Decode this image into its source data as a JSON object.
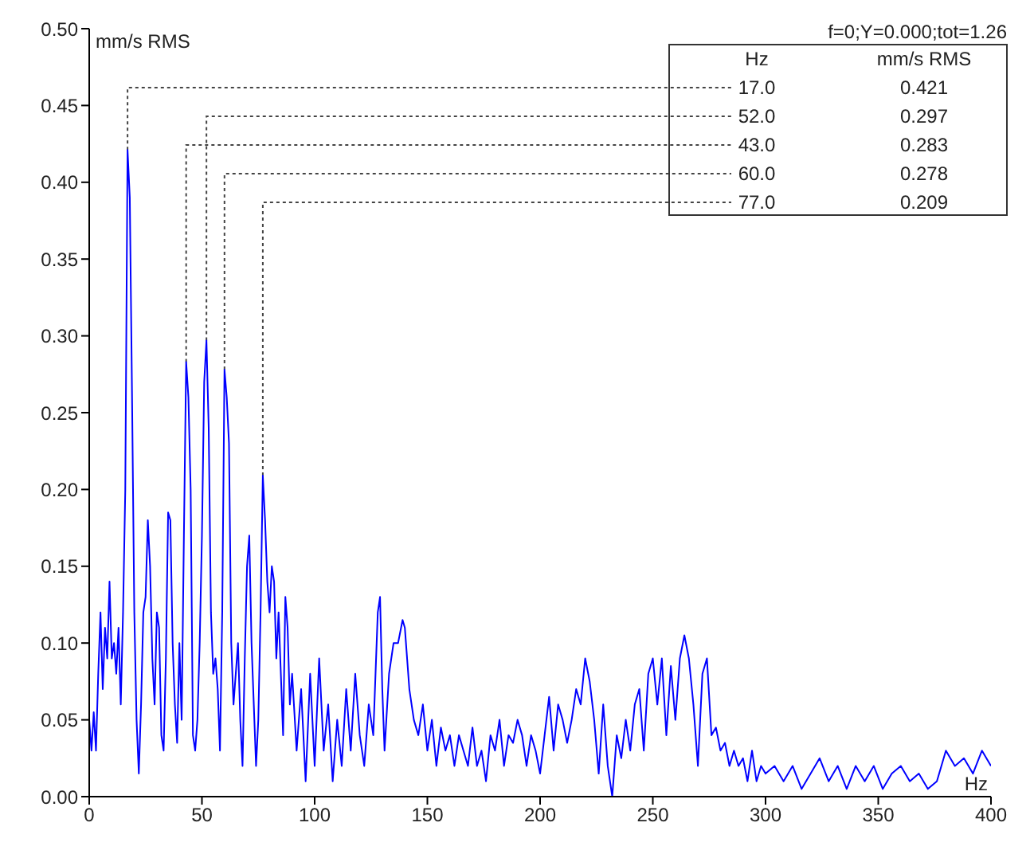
{
  "chart_data": {
    "type": "line",
    "xlabel": "Hz",
    "ylabel": "mm/s RMS",
    "annotations": [
      "f=0;Y=0.000;tot=1.26",
      "Hz",
      "mm/s RMS",
      {
        "text": "17.0",
        "x": 17,
        "y": 0.421
      },
      "0.421",
      {
        "text": "52.0",
        "x": 52,
        "y": 0.297
      },
      "0.297",
      {
        "text": "43.0",
        "x": 43,
        "y": 0.283
      },
      "0.283",
      {
        "text": "60.0",
        "x": 60,
        "y": 0.278
      },
      "0.278",
      {
        "text": "77.0",
        "x": 77,
        "y": 0.209
      },
      "0.209"
    ],
    "x": [
      0,
      1,
      2,
      3,
      4,
      5,
      6,
      7,
      8,
      9,
      10,
      11,
      12,
      13,
      14,
      15,
      16,
      17,
      18,
      19,
      20,
      21,
      22,
      23,
      24,
      25,
      26,
      27,
      28,
      29,
      30,
      31,
      32,
      33,
      34,
      35,
      36,
      37,
      38,
      39,
      40,
      41,
      42,
      43,
      44,
      45,
      46,
      47,
      48,
      49,
      50,
      51,
      52,
      53,
      54,
      55,
      56,
      57,
      58,
      59,
      60,
      61,
      62,
      63,
      64,
      65,
      66,
      67,
      68,
      69,
      70,
      71,
      72,
      73,
      74,
      75,
      76,
      77,
      78,
      79,
      80,
      81,
      82,
      83,
      84,
      85,
      86,
      87,
      88,
      89,
      90,
      92,
      94,
      95,
      96,
      98,
      100,
      102,
      104,
      106,
      108,
      110,
      112,
      114,
      116,
      118,
      120,
      122,
      124,
      126,
      128,
      129,
      130,
      131,
      133,
      135,
      137,
      139,
      140,
      142,
      144,
      146,
      148,
      150,
      152,
      154,
      156,
      158,
      160,
      162,
      164,
      166,
      168,
      170,
      172,
      174,
      176,
      178,
      180,
      182,
      184,
      186,
      188,
      190,
      192,
      194,
      196,
      198,
      200,
      202,
      204,
      206,
      208,
      210,
      212,
      214,
      216,
      218,
      220,
      222,
      224,
      226,
      228,
      230,
      232,
      234,
      236,
      238,
      240,
      242,
      244,
      246,
      248,
      250,
      252,
      254,
      256,
      258,
      260,
      262,
      264,
      266,
      268,
      270,
      272,
      274,
      276,
      278,
      280,
      282,
      284,
      286,
      288,
      290,
      292,
      294,
      296,
      298,
      300,
      304,
      308,
      312,
      316,
      320,
      324,
      328,
      332,
      336,
      340,
      344,
      348,
      352,
      356,
      360,
      364,
      368,
      372,
      376,
      380,
      384,
      388,
      392,
      396,
      400
    ],
    "series": [
      {
        "color": "#0000ff",
        "values": [
          0.05,
          0.03,
          0.055,
          0.03,
          0.08,
          0.12,
          0.07,
          0.11,
          0.09,
          0.14,
          0.09,
          0.1,
          0.08,
          0.11,
          0.06,
          0.12,
          0.2,
          0.421,
          0.39,
          0.26,
          0.12,
          0.05,
          0.015,
          0.06,
          0.12,
          0.13,
          0.18,
          0.15,
          0.09,
          0.06,
          0.12,
          0.11,
          0.04,
          0.03,
          0.09,
          0.185,
          0.18,
          0.1,
          0.06,
          0.035,
          0.1,
          0.05,
          0.17,
          0.283,
          0.26,
          0.2,
          0.04,
          0.03,
          0.05,
          0.1,
          0.17,
          0.27,
          0.297,
          0.24,
          0.12,
          0.08,
          0.09,
          0.07,
          0.03,
          0.12,
          0.278,
          0.26,
          0.23,
          0.1,
          0.06,
          0.08,
          0.1,
          0.05,
          0.02,
          0.09,
          0.15,
          0.17,
          0.1,
          0.06,
          0.02,
          0.05,
          0.12,
          0.209,
          0.18,
          0.14,
          0.12,
          0.15,
          0.14,
          0.09,
          0.12,
          0.08,
          0.04,
          0.13,
          0.11,
          0.06,
          0.08,
          0.03,
          0.07,
          0.04,
          0.01,
          0.08,
          0.02,
          0.09,
          0.03,
          0.06,
          0.01,
          0.05,
          0.02,
          0.07,
          0.03,
          0.08,
          0.04,
          0.02,
          0.06,
          0.04,
          0.12,
          0.13,
          0.07,
          0.03,
          0.08,
          0.1,
          0.1,
          0.115,
          0.11,
          0.07,
          0.05,
          0.04,
          0.06,
          0.03,
          0.05,
          0.02,
          0.045,
          0.03,
          0.04,
          0.02,
          0.04,
          0.03,
          0.02,
          0.045,
          0.02,
          0.03,
          0.01,
          0.04,
          0.03,
          0.05,
          0.02,
          0.04,
          0.035,
          0.05,
          0.04,
          0.02,
          0.04,
          0.03,
          0.015,
          0.04,
          0.065,
          0.03,
          0.06,
          0.05,
          0.035,
          0.05,
          0.07,
          0.06,
          0.09,
          0.075,
          0.05,
          0.015,
          0.06,
          0.02,
          0.0,
          0.04,
          0.025,
          0.05,
          0.03,
          0.06,
          0.07,
          0.03,
          0.08,
          0.09,
          0.06,
          0.09,
          0.04,
          0.085,
          0.05,
          0.09,
          0.105,
          0.09,
          0.06,
          0.02,
          0.08,
          0.09,
          0.04,
          0.045,
          0.03,
          0.035,
          0.02,
          0.03,
          0.02,
          0.025,
          0.01,
          0.03,
          0.01,
          0.02,
          0.015,
          0.02,
          0.01,
          0.02,
          0.005,
          0.015,
          0.025,
          0.01,
          0.02,
          0.005,
          0.02,
          0.01,
          0.02,
          0.005,
          0.015,
          0.02,
          0.01,
          0.015,
          0.005,
          0.01,
          0.03,
          0.02,
          0.025,
          0.015,
          0.03,
          0.02
        ]
      }
    ],
    "xlim": [
      0,
      400
    ],
    "xticks": [
      0,
      50,
      100,
      150,
      200,
      250,
      300,
      350,
      400
    ],
    "ylim": [
      0,
      0.5
    ],
    "yticks": [
      {
        "value": 0,
        "label": "0.00"
      },
      {
        "value": 0.05,
        "label": "0.05"
      },
      {
        "value": 0.1,
        "label": "0.10"
      },
      {
        "value": 0.15,
        "label": "0.15"
      },
      {
        "value": 0.2,
        "label": "0.20"
      },
      {
        "value": 0.25,
        "label": "0.25"
      },
      {
        "value": 0.3,
        "label": "0.30"
      },
      {
        "value": 0.35,
        "label": "0.35"
      },
      {
        "value": 0.4,
        "label": "0.40"
      },
      {
        "value": 0.45,
        "label": "0.45"
      },
      {
        "value": 0.5,
        "label": "0.50"
      }
    ],
    "grid": false,
    "legend": false,
    "marker": "none",
    "line_style": "solid"
  }
}
